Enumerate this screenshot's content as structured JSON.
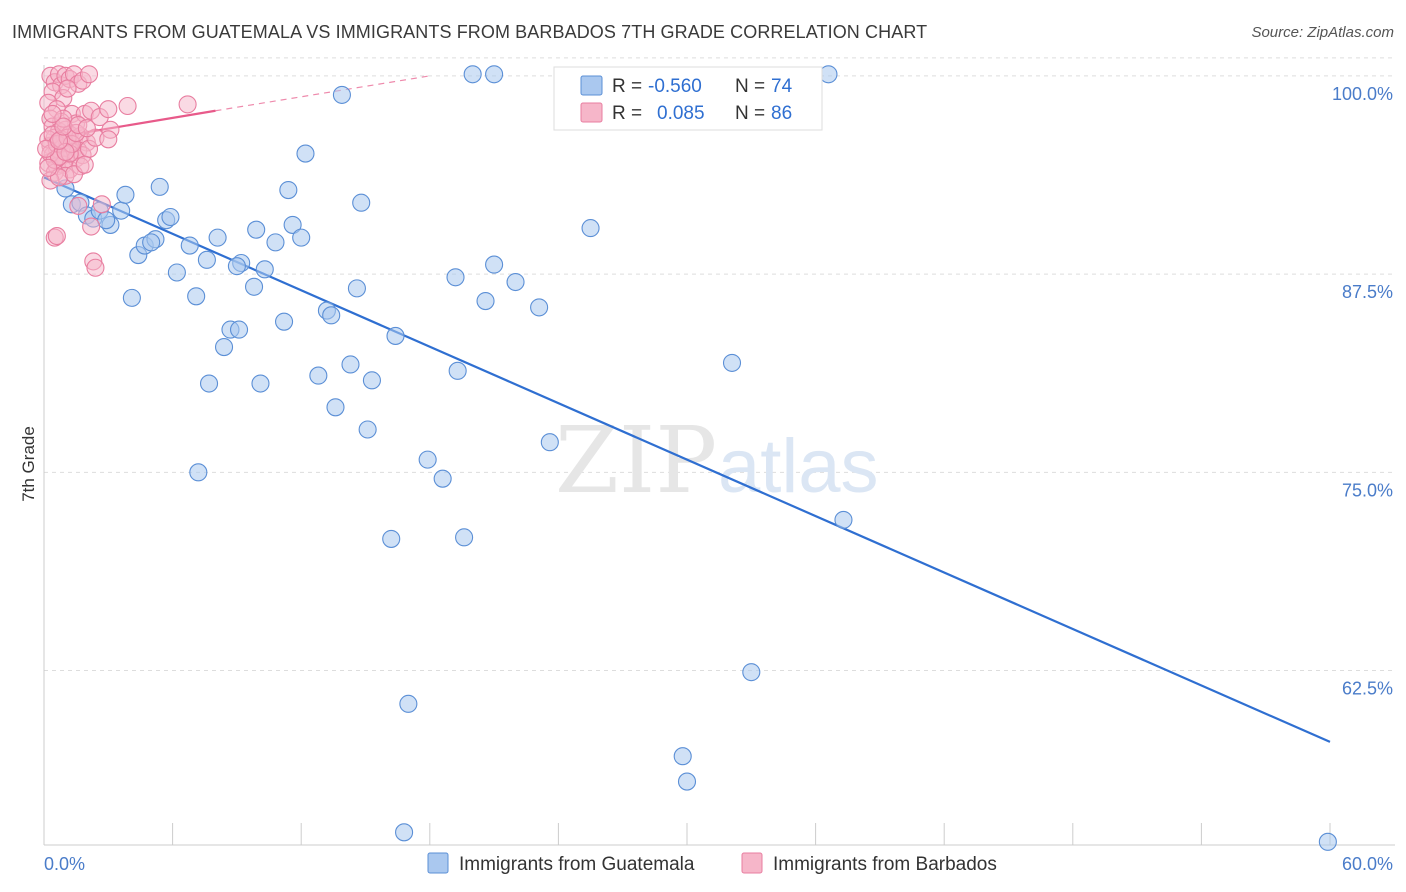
{
  "title": "IMMIGRANTS FROM GUATEMALA VS IMMIGRANTS FROM BARBADOS 7TH GRADE CORRELATION CHART",
  "source": "Source: ZipAtlas.com",
  "watermark": {
    "zip": "ZIP",
    "atlas": "atlas"
  },
  "colors": {
    "guatemala_fill": "#aac8ef",
    "guatemala_stroke": "#5b8fd6",
    "guatemala_line": "#2f6fd1",
    "barbados_fill": "#f6b6c9",
    "barbados_stroke": "#e87ea0",
    "barbados_line": "#e85a8a",
    "grid": "#dddddd",
    "tick_label": "#4a7cc9"
  },
  "legend": {
    "rows": [
      {
        "r_label": "R =",
        "r_value": "-0.560",
        "n_label": "N =",
        "n_value": "74"
      },
      {
        "r_label": "R =",
        "r_value": "0.085",
        "n_label": "N =",
        "n_value": "86"
      }
    ]
  },
  "chart_data": {
    "type": "scatter",
    "title": "IMMIGRANTS FROM GUATEMALA VS IMMIGRANTS FROM BARBADOS 7TH GRADE CORRELATION CHART",
    "xlabel": "",
    "ylabel": "7th Grade",
    "xlim": [
      0,
      60
    ],
    "ylim": [
      51.5,
      101
    ],
    "x_tick_labels": [
      "0.0%",
      "60.0%"
    ],
    "y_ticks": [
      62.5,
      75.0,
      87.5,
      100.0
    ],
    "y_tick_labels": [
      "62.5%",
      "75.0%",
      "87.5%",
      "100.0%"
    ],
    "grid": true,
    "series": [
      {
        "name": "Immigrants from Guatemala",
        "color": "#5b8fd6",
        "R": -0.56,
        "N": 74,
        "trend": {
          "x": [
            0,
            60
          ],
          "y": [
            93.6,
            58.0
          ]
        },
        "points": [
          [
            1.0,
            92.9
          ],
          [
            1.3,
            91.9
          ],
          [
            1.7,
            92.0
          ],
          [
            2.0,
            91.2
          ],
          [
            2.3,
            91.0
          ],
          [
            2.6,
            91.5
          ],
          [
            3.1,
            90.6
          ],
          [
            3.6,
            91.5
          ],
          [
            3.8,
            92.5
          ],
          [
            4.4,
            88.7
          ],
          [
            4.1,
            86.0
          ],
          [
            4.7,
            89.3
          ],
          [
            5.2,
            89.7
          ],
          [
            5.4,
            93.0
          ],
          [
            5.7,
            90.9
          ],
          [
            5.9,
            91.1
          ],
          [
            6.2,
            87.6
          ],
          [
            6.8,
            89.3
          ],
          [
            7.1,
            86.1
          ],
          [
            7.6,
            88.4
          ],
          [
            7.7,
            80.6
          ],
          [
            7.2,
            75.0
          ],
          [
            8.1,
            89.8
          ],
          [
            8.4,
            82.9
          ],
          [
            8.7,
            84.0
          ],
          [
            9.2,
            88.2
          ],
          [
            9.1,
            84.0
          ],
          [
            9.8,
            86.7
          ],
          [
            9.9,
            90.3
          ],
          [
            10.1,
            80.6
          ],
          [
            10.3,
            87.8
          ],
          [
            10.8,
            89.5
          ],
          [
            11.2,
            84.5
          ],
          [
            11.4,
            92.8
          ],
          [
            11.6,
            90.6
          ],
          [
            12.2,
            95.1
          ],
          [
            12.8,
            81.1
          ],
          [
            13.2,
            85.2
          ],
          [
            13.4,
            84.9
          ],
          [
            13.6,
            79.1
          ],
          [
            13.9,
            98.8
          ],
          [
            14.3,
            81.8
          ],
          [
            14.6,
            86.6
          ],
          [
            14.8,
            92.0
          ],
          [
            15.1,
            77.7
          ],
          [
            15.3,
            80.8
          ],
          [
            16.4,
            83.6
          ],
          [
            16.2,
            70.8
          ],
          [
            17.0,
            60.4
          ],
          [
            17.9,
            75.8
          ],
          [
            18.6,
            74.6
          ],
          [
            19.2,
            87.3
          ],
          [
            19.3,
            81.4
          ],
          [
            19.6,
            70.9
          ],
          [
            20.0,
            100.1
          ],
          [
            20.6,
            85.8
          ],
          [
            21.0,
            88.1
          ],
          [
            21.0,
            100.1
          ],
          [
            22.0,
            87.0
          ],
          [
            23.1,
            85.4
          ],
          [
            23.6,
            76.9
          ],
          [
            25.5,
            90.4
          ],
          [
            29.8,
            57.1
          ],
          [
            30.0,
            55.5
          ],
          [
            32.1,
            81.9
          ],
          [
            33.0,
            62.4
          ],
          [
            36.6,
            100.1
          ],
          [
            37.3,
            72.0
          ],
          [
            16.8,
            52.3
          ],
          [
            59.9,
            51.7
          ],
          [
            2.9,
            90.9
          ],
          [
            5.0,
            89.5
          ],
          [
            12.0,
            89.8
          ],
          [
            9.0,
            88.0
          ]
        ]
      },
      {
        "name": "Immigrants from Barbados",
        "color": "#e87ea0",
        "R": 0.085,
        "N": 86,
        "trend": {
          "x": [
            0,
            8
          ],
          "y": [
            96.0,
            97.8
          ]
        },
        "trend_ext": {
          "x": [
            8,
            18
          ],
          "y": [
            97.8,
            100.0
          ]
        },
        "points": [
          [
            0.3,
            100.0
          ],
          [
            0.5,
            99.6
          ],
          [
            0.7,
            100.1
          ],
          [
            0.8,
            99.4
          ],
          [
            1.0,
            100.0
          ],
          [
            1.2,
            99.8
          ],
          [
            1.4,
            100.1
          ],
          [
            1.6,
            99.5
          ],
          [
            0.4,
            99.0
          ],
          [
            0.9,
            98.6
          ],
          [
            1.1,
            99.2
          ],
          [
            0.2,
            98.3
          ],
          [
            0.6,
            97.9
          ],
          [
            1.3,
            97.6
          ],
          [
            0.3,
            97.3
          ],
          [
            0.8,
            97.1
          ],
          [
            1.5,
            97.0
          ],
          [
            1.9,
            97.6
          ],
          [
            2.2,
            97.8
          ],
          [
            2.6,
            97.4
          ],
          [
            0.4,
            96.8
          ],
          [
            0.7,
            96.5
          ],
          [
            1.0,
            96.6
          ],
          [
            1.2,
            96.3
          ],
          [
            0.5,
            96.1
          ],
          [
            0.9,
            95.9
          ],
          [
            1.4,
            96.0
          ],
          [
            1.7,
            96.2
          ],
          [
            2.0,
            95.8
          ],
          [
            0.3,
            95.6
          ],
          [
            0.6,
            95.4
          ],
          [
            1.1,
            95.5
          ],
          [
            1.3,
            95.2
          ],
          [
            1.6,
            95.3
          ],
          [
            0.4,
            95.0
          ],
          [
            0.8,
            94.9
          ],
          [
            1.0,
            94.7
          ],
          [
            1.5,
            94.8
          ],
          [
            1.8,
            95.0
          ],
          [
            2.1,
            95.4
          ],
          [
            0.2,
            94.5
          ],
          [
            0.6,
            94.3
          ],
          [
            0.9,
            94.4
          ],
          [
            1.2,
            94.1
          ],
          [
            1.7,
            94.3
          ],
          [
            0.5,
            93.9
          ],
          [
            1.0,
            93.7
          ],
          [
            0.3,
            93.4
          ],
          [
            0.7,
            93.6
          ],
          [
            1.4,
            93.8
          ],
          [
            2.4,
            96.1
          ],
          [
            3.1,
            96.6
          ],
          [
            3.0,
            96.0
          ],
          [
            1.6,
            91.8
          ],
          [
            2.7,
            91.9
          ],
          [
            0.5,
            89.8
          ],
          [
            0.6,
            89.9
          ],
          [
            2.3,
            88.3
          ],
          [
            2.4,
            87.9
          ],
          [
            2.2,
            90.5
          ],
          [
            6.7,
            98.2
          ],
          [
            3.9,
            98.1
          ],
          [
            3.0,
            97.9
          ],
          [
            0.9,
            97.3
          ],
          [
            1.8,
            99.7
          ],
          [
            2.1,
            100.1
          ],
          [
            0.2,
            96.0
          ],
          [
            0.4,
            96.3
          ],
          [
            0.3,
            95.1
          ],
          [
            0.6,
            95.7
          ],
          [
            0.8,
            96.0
          ],
          [
            1.1,
            96.1
          ],
          [
            0.5,
            94.7
          ],
          [
            0.7,
            94.9
          ],
          [
            1.2,
            95.1
          ],
          [
            1.9,
            94.4
          ],
          [
            0.1,
            95.4
          ],
          [
            0.2,
            94.2
          ],
          [
            1.3,
            95.7
          ],
          [
            1.0,
            95.2
          ],
          [
            0.7,
            95.9
          ],
          [
            1.5,
            96.4
          ],
          [
            0.9,
            96.8
          ],
          [
            0.4,
            97.6
          ],
          [
            1.6,
            96.9
          ],
          [
            2.0,
            96.7
          ]
        ]
      }
    ],
    "legend_position": "top-center"
  },
  "bottom_legend": [
    "Immigrants from Guatemala",
    "Immigrants from Barbados"
  ]
}
